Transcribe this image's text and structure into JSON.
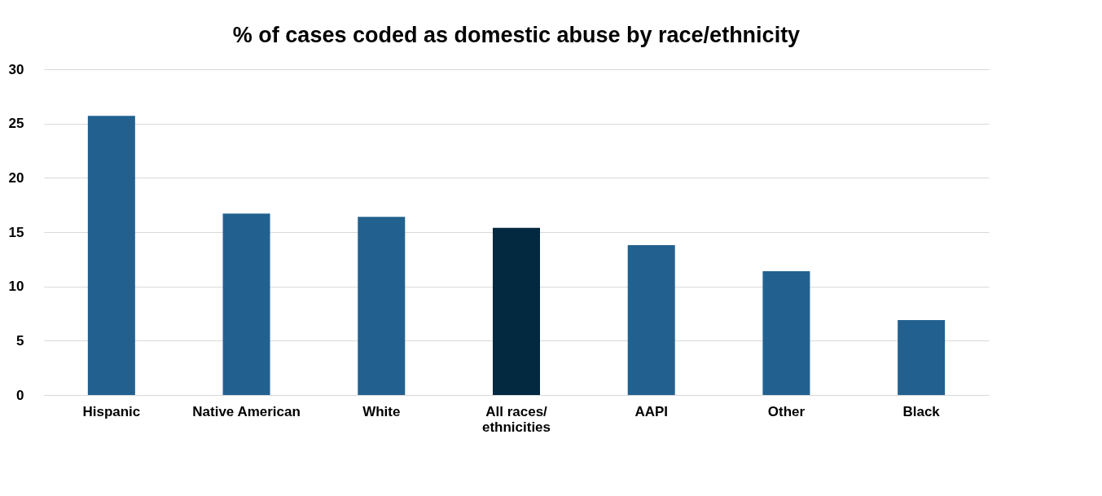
{
  "chart_data": {
    "type": "bar",
    "title": "% of cases coded as domestic abuse by race/ethnicity",
    "categories": [
      "Hispanic",
      "Native American",
      "White",
      "All races/\nethnicities",
      "AAPI",
      "Other",
      "Black"
    ],
    "values": [
      25.7,
      16.7,
      16.4,
      15.4,
      13.8,
      11.4,
      6.9
    ],
    "colors": [
      "#22618f",
      "#22618f",
      "#22618f",
      "#032940",
      "#22618f",
      "#22618f",
      "#22618f"
    ],
    "ylim": [
      0,
      30
    ],
    "yticks": [
      0,
      5,
      10,
      15,
      20,
      25,
      30
    ],
    "grid": "y"
  }
}
